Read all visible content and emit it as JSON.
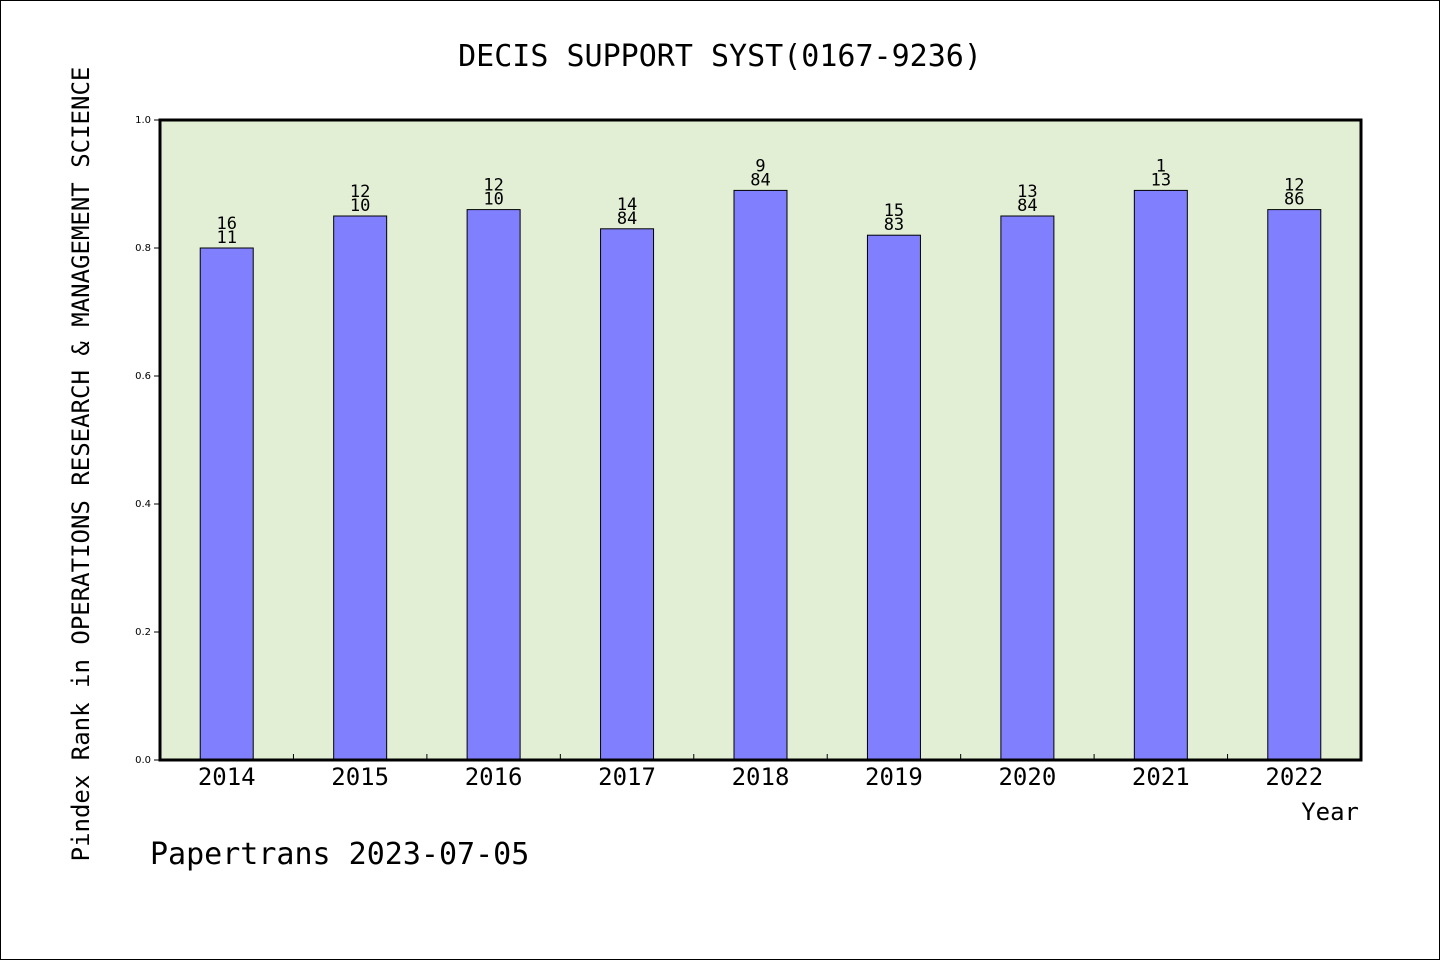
{
  "chart_data": {
    "type": "bar",
    "title": "DECIS SUPPORT SYST(0167-9236)",
    "xlabel": "Year",
    "ylabel": "Pindex Rank in OPERATIONS RESEARCH & MANAGEMENT SCIENCE",
    "footer": "Papertrans 2023-07-05",
    "categories": [
      "2014",
      "2015",
      "2016",
      "2017",
      "2018",
      "2019",
      "2020",
      "2021",
      "2022"
    ],
    "values": [
      0.8,
      0.85,
      0.86,
      0.83,
      0.89,
      0.82,
      0.85,
      0.89,
      0.86
    ],
    "label_top": [
      "16",
      "12",
      "12",
      "14",
      "9",
      "15",
      "13",
      "1",
      "12"
    ],
    "label_bottom": [
      "11",
      "10",
      "10",
      "84",
      "84",
      "83",
      "84",
      "13",
      "86"
    ],
    "ylim": [
      0.0,
      1.0
    ],
    "yticks": [
      "0.0",
      "0.2",
      "0.4",
      "0.6",
      "0.8",
      "1.0"
    ],
    "grid": false,
    "colors": {
      "plot_background": "#e2efd5",
      "bar_fill": "#8080ff",
      "bar_stroke": "#000000"
    }
  }
}
